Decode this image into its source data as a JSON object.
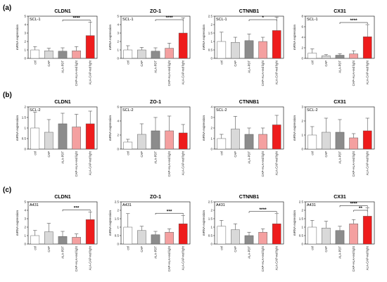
{
  "figure": {
    "row_labels": [
      "(a)",
      "(b)",
      "(c)"
    ],
    "colors": {
      "ctrl": "#ffffff",
      "CAP": "#d9d9d9",
      "ALA-PDT": "#8c8c8c",
      "CAP+ALA": "#f4a0a0",
      "ALA-CAP": "#ee1c1c",
      "edge": "#555555"
    }
  },
  "chart_data": [
    {
      "type": "bar",
      "row": 0,
      "col": 0,
      "title": "CLDN1",
      "panel_label": "SCL-1",
      "ylabel": "mRNA expression",
      "ylim": [
        0,
        5
      ],
      "yticks": [
        0,
        1,
        2,
        3,
        4,
        5
      ],
      "categories": [
        "ctrl",
        "CAP",
        "ALA-PDT",
        "CAP+ALA+red light",
        "ALA-CAP-red light"
      ],
      "values": [
        1.0,
        0.9,
        0.85,
        0.9,
        2.7
      ],
      "errors": [
        0.4,
        0.3,
        0.4,
        0.5,
        1.6
      ],
      "significance": [
        {
          "from": 2,
          "to": 4,
          "label": "****"
        }
      ]
    },
    {
      "type": "bar",
      "row": 0,
      "col": 1,
      "title": "ZO-1",
      "panel_label": "SCL-1",
      "ylabel": "mRNA expression",
      "ylim": [
        0,
        5
      ],
      "yticks": [
        0,
        1,
        2,
        3,
        4,
        5
      ],
      "categories": [
        "ctrl",
        "CAP",
        "ALA-PDT",
        "CAP+ALA+red light",
        "ALA-CAP-red light"
      ],
      "values": [
        1.0,
        1.0,
        0.85,
        1.2,
        3.0
      ],
      "errors": [
        0.5,
        0.3,
        0.4,
        0.6,
        1.8
      ],
      "significance": [
        {
          "from": 2,
          "to": 4,
          "label": "****"
        }
      ]
    },
    {
      "type": "bar",
      "row": 0,
      "col": 2,
      "title": "CTNNB1",
      "panel_label": "SCL-1",
      "ylabel": "mRNA expression",
      "ylim": [
        0,
        2.5
      ],
      "yticks": [
        0,
        0.5,
        1,
        1.5,
        2,
        2.5
      ],
      "categories": [
        "ctrl",
        "CAP",
        "ALA-PDT",
        "CAP+ALA+red light",
        "ALA-CAP-red light"
      ],
      "values": [
        1.0,
        0.95,
        1.05,
        1.0,
        1.65
      ],
      "errors": [
        0.55,
        0.3,
        0.4,
        0.25,
        0.8
      ],
      "significance": [
        {
          "from": 2,
          "to": 4,
          "label": "*"
        }
      ]
    },
    {
      "type": "bar",
      "row": 0,
      "col": 3,
      "title": "CX31",
      "panel_label": "SCL-1",
      "ylabel": "mRNA expression",
      "ylim": [
        0,
        8
      ],
      "yticks": [
        0,
        2,
        4,
        6,
        8
      ],
      "categories": [
        "ctrl",
        "CAP",
        "ALA-PDT",
        "CAP+ALA+red light",
        "ALA-CAP-red light"
      ],
      "values": [
        1.0,
        0.5,
        0.6,
        0.85,
        4.1
      ],
      "errors": [
        0.8,
        0.2,
        0.3,
        0.6,
        2.3
      ],
      "significance": [
        {
          "from": 2,
          "to": 4,
          "label": "****"
        }
      ]
    },
    {
      "type": "bar",
      "row": 1,
      "col": 0,
      "title": "CLDN1",
      "panel_label": "SCL-2",
      "ylabel": "mRNA expression",
      "ylim": [
        0,
        2
      ],
      "yticks": [
        0,
        0.5,
        1,
        1.5,
        2
      ],
      "categories": [
        "ctrl",
        "CAP",
        "ALA-PDT",
        "CAP+ALA+red light",
        "ALA-CAP-red light"
      ],
      "values": [
        1.0,
        0.8,
        1.2,
        1.05,
        1.2
      ],
      "errors": [
        0.75,
        0.6,
        0.5,
        0.6,
        0.6
      ],
      "significance": []
    },
    {
      "type": "bar",
      "row": 1,
      "col": 1,
      "title": "ZO-1",
      "panel_label": "SCL-2",
      "ylabel": "mRNA expression",
      "ylim": [
        0,
        6
      ],
      "yticks": [
        0,
        2,
        4,
        6
      ],
      "categories": [
        "ctrl",
        "CAP",
        "ALA-PDT",
        "CAP+ALA+red light",
        "ALA-CAP-red light"
      ],
      "values": [
        1.0,
        2.1,
        2.6,
        2.6,
        2.3
      ],
      "errors": [
        0.4,
        1.5,
        1.9,
        2.1,
        1.2
      ],
      "significance": []
    },
    {
      "type": "bar",
      "row": 1,
      "col": 2,
      "title": "CTNNB1",
      "panel_label": "SCL-2",
      "ylabel": "mRNA expression",
      "ylim": [
        0,
        4
      ],
      "yticks": [
        0,
        1,
        2,
        3,
        4
      ],
      "categories": [
        "ctrl",
        "CAP",
        "ALA-PDT",
        "CAP+ALA+red light",
        "ALA-CAP-red light"
      ],
      "values": [
        1.0,
        1.9,
        1.4,
        1.4,
        2.3
      ],
      "errors": [
        0.4,
        1.2,
        0.6,
        0.6,
        0.9
      ],
      "significance": []
    },
    {
      "type": "bar",
      "row": 1,
      "col": 3,
      "title": "CX31",
      "panel_label": "SCL-2",
      "ylabel": "mRNA expression",
      "ylim": [
        0,
        3
      ],
      "yticks": [
        0,
        1,
        2,
        3
      ],
      "categories": [
        "ctrl",
        "CAP",
        "ALA-PDT",
        "CAP+ALA+red light",
        "ALA-CAP-red light"
      ],
      "values": [
        1.0,
        1.2,
        1.2,
        0.8,
        1.3
      ],
      "errors": [
        0.6,
        1.0,
        0.9,
        0.3,
        0.9
      ],
      "significance": []
    },
    {
      "type": "bar",
      "row": 2,
      "col": 0,
      "title": "CLDN1",
      "panel_label": "A431",
      "ylabel": "mRNA expression",
      "ylim": [
        0,
        5
      ],
      "yticks": [
        0,
        1,
        2,
        3,
        4,
        5
      ],
      "categories": [
        "ctrl",
        "CAP",
        "ALA-PDT",
        "CAP+ALA+red light",
        "ALA-CAP-red light"
      ],
      "values": [
        1.0,
        1.45,
        0.9,
        0.8,
        2.9
      ],
      "errors": [
        0.6,
        1.0,
        0.6,
        0.4,
        0.9
      ],
      "significance": [
        {
          "from": 2,
          "to": 4,
          "label": "***"
        }
      ]
    },
    {
      "type": "bar",
      "row": 2,
      "col": 1,
      "title": "ZO-1",
      "panel_label": "A431",
      "ylabel": "mRNA expression",
      "ylim": [
        0,
        2.5
      ],
      "yticks": [
        0,
        0.5,
        1,
        1.5,
        2,
        2.5
      ],
      "categories": [
        "ctrl",
        "CAP",
        "ALA-PDT",
        "CAP+ALA+red light",
        "ALA-CAP-red light"
      ],
      "values": [
        1.0,
        0.8,
        0.55,
        0.7,
        1.2
      ],
      "errors": [
        0.8,
        0.25,
        0.2,
        0.2,
        0.5
      ],
      "significance": [
        {
          "from": 2,
          "to": 4,
          "label": "***"
        }
      ]
    },
    {
      "type": "bar",
      "row": 2,
      "col": 2,
      "title": "CTNNB1",
      "panel_label": "A431",
      "ylabel": "mRNA expression",
      "ylim": [
        0,
        2.5
      ],
      "yticks": [
        0,
        0.5,
        1,
        1.5,
        2,
        2.5
      ],
      "categories": [
        "ctrl",
        "CAP",
        "ALA-PDT",
        "CAP+ALA+red light",
        "ALA-CAP-red light"
      ],
      "values": [
        1.05,
        0.85,
        0.5,
        0.7,
        1.2
      ],
      "errors": [
        0.35,
        0.35,
        0.2,
        0.2,
        0.6
      ],
      "significance": [
        {
          "from": 2,
          "to": 4,
          "label": "****"
        }
      ]
    },
    {
      "type": "bar",
      "row": 2,
      "col": 3,
      "title": "CX31",
      "panel_label": "A431",
      "ylabel": "mRNA expression",
      "ylim": [
        0,
        2.5
      ],
      "yticks": [
        0,
        0.5,
        1,
        1.5,
        2,
        2.5
      ],
      "categories": [
        "ctrl",
        "CAP",
        "ALA-PDT",
        "CAP+ALA+red light",
        "ALA-CAP-red light"
      ],
      "values": [
        1.0,
        0.95,
        0.8,
        1.2,
        1.65
      ],
      "errors": [
        0.4,
        0.4,
        0.25,
        0.25,
        0.5
      ],
      "significance": [
        {
          "from": 2,
          "to": 4,
          "label": "****"
        },
        {
          "from": 3,
          "to": 4,
          "label": "**"
        }
      ]
    }
  ]
}
